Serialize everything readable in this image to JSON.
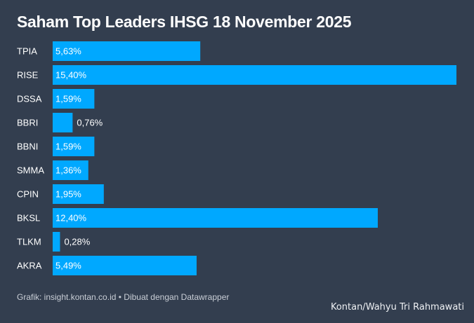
{
  "chart_data": {
    "type": "bar",
    "orientation": "horizontal",
    "title": "Saham Top Leaders IHSG 18 November 2025",
    "categories": [
      "TPIA",
      "RISE",
      "DSSA",
      "BBRI",
      "BBNI",
      "SMMA",
      "CPIN",
      "BKSL",
      "TLKM",
      "AKRA"
    ],
    "values": [
      5.63,
      15.4,
      1.59,
      0.76,
      1.59,
      1.36,
      1.95,
      12.4,
      0.28,
      5.49
    ],
    "data_labels": [
      "5,63%",
      "15,40%",
      "1,59%",
      "0,76%",
      "1,59%",
      "1,36%",
      "1,95%",
      "12,40%",
      "0,28%",
      "5,49%"
    ],
    "xlim": [
      0,
      15.4
    ],
    "grid": false,
    "bar_color": "#00a8ff",
    "background_color": "#333e4f"
  },
  "footer": {
    "source": "Grafik: insight.kontan.co.id • Dibuat dengan Datawrapper",
    "credit": "Kontan/Wahyu Tri Rahmawati"
  }
}
